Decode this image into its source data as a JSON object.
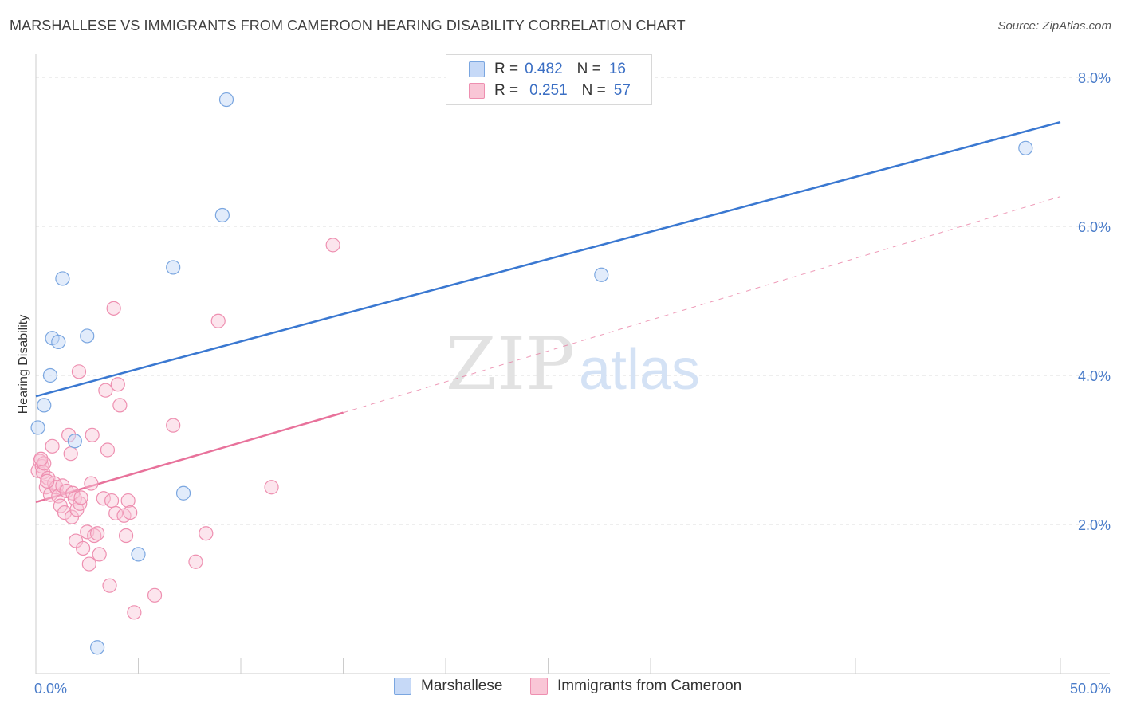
{
  "title": "MARSHALLESE VS IMMIGRANTS FROM CAMEROON HEARING DISABILITY CORRELATION CHART",
  "source": "Source: ZipAtlas.com",
  "watermark": {
    "zip": "ZIP",
    "atlas": "atlas"
  },
  "legend_top": {
    "rows": [
      {
        "r_label": "R =",
        "r_value": "0.482",
        "n_label": "N =",
        "n_value": "16"
      },
      {
        "r_label": "R =",
        "r_value": "0.251",
        "n_label": "N =",
        "n_value": "57"
      }
    ]
  },
  "bottom_legend": {
    "series1": "Marshallese",
    "series2": "Immigrants from Cameroon"
  },
  "colors": {
    "blue_fill": "#c6d9f7",
    "blue_stroke": "#7aa6e0",
    "blue_line": "#3a78d1",
    "pink_fill": "#f9c6d6",
    "pink_stroke": "#ee8fb0",
    "pink_line": "#e8729b",
    "tick_text": "#4a7cc9",
    "grid": "#dcdcdc"
  },
  "chart_data": {
    "type": "scatter",
    "title": "MARSHALLESE VS IMMIGRANTS FROM CAMEROON HEARING DISABILITY CORRELATION CHART",
    "xlabel": "",
    "ylabel": "Hearing Disability",
    "xlim": [
      0,
      50
    ],
    "ylim": [
      0,
      8.2
    ],
    "x_tick_labels": [
      "0.0%",
      "50.0%"
    ],
    "y_ticks": [
      2,
      4,
      6,
      8
    ],
    "y_tick_labels": [
      "2.0%",
      "4.0%",
      "6.0%",
      "8.0%"
    ],
    "grid": true,
    "legend_position": "top-center",
    "series": [
      {
        "name": "Marshallese",
        "color": "#7aa6e0",
        "points": [
          [
            0.1,
            3.3
          ],
          [
            0.4,
            3.6
          ],
          [
            0.7,
            4.0
          ],
          [
            0.8,
            4.5
          ],
          [
            1.1,
            4.45
          ],
          [
            1.3,
            5.3
          ],
          [
            1.9,
            3.12
          ],
          [
            2.5,
            4.53
          ],
          [
            3.0,
            0.35
          ],
          [
            5.0,
            1.6
          ],
          [
            6.7,
            5.45
          ],
          [
            7.2,
            2.42
          ],
          [
            9.1,
            6.15
          ],
          [
            9.3,
            7.7
          ],
          [
            27.6,
            5.35
          ],
          [
            48.3,
            7.05
          ]
        ],
        "trend": {
          "x": [
            0,
            50
          ],
          "y": [
            3.72,
            7.4
          ],
          "style": "solid"
        }
      },
      {
        "name": "Immigrants from Cameroon",
        "color": "#ee8fb0",
        "points": [
          [
            0.1,
            2.72
          ],
          [
            0.2,
            2.85
          ],
          [
            0.3,
            2.78
          ],
          [
            0.35,
            2.7
          ],
          [
            0.4,
            2.82
          ],
          [
            0.5,
            2.5
          ],
          [
            0.6,
            2.62
          ],
          [
            0.7,
            2.4
          ],
          [
            0.8,
            3.05
          ],
          [
            0.9,
            2.55
          ],
          [
            1.0,
            2.5
          ],
          [
            1.1,
            2.38
          ],
          [
            1.2,
            2.25
          ],
          [
            1.3,
            2.52
          ],
          [
            1.4,
            2.16
          ],
          [
            1.5,
            2.45
          ],
          [
            1.6,
            3.2
          ],
          [
            1.7,
            2.95
          ],
          [
            1.75,
            2.1
          ],
          [
            1.8,
            2.42
          ],
          [
            1.9,
            2.35
          ],
          [
            1.95,
            1.78
          ],
          [
            2.0,
            2.2
          ],
          [
            2.1,
            4.05
          ],
          [
            2.15,
            2.28
          ],
          [
            2.2,
            2.36
          ],
          [
            2.3,
            1.68
          ],
          [
            2.5,
            1.9
          ],
          [
            2.6,
            1.47
          ],
          [
            2.7,
            2.55
          ],
          [
            2.75,
            3.2
          ],
          [
            2.85,
            1.85
          ],
          [
            3.0,
            1.88
          ],
          [
            3.1,
            1.6
          ],
          [
            3.3,
            2.35
          ],
          [
            3.4,
            3.8
          ],
          [
            3.5,
            3.0
          ],
          [
            3.6,
            1.18
          ],
          [
            3.7,
            2.32
          ],
          [
            3.8,
            4.9
          ],
          [
            3.9,
            2.15
          ],
          [
            4.0,
            3.88
          ],
          [
            4.1,
            3.6
          ],
          [
            4.3,
            2.12
          ],
          [
            4.4,
            1.85
          ],
          [
            4.5,
            2.32
          ],
          [
            4.6,
            2.16
          ],
          [
            4.8,
            0.82
          ],
          [
            5.8,
            1.05
          ],
          [
            6.7,
            3.33
          ],
          [
            7.8,
            1.5
          ],
          [
            8.3,
            1.88
          ],
          [
            8.9,
            4.73
          ],
          [
            11.5,
            2.5
          ],
          [
            14.5,
            5.75
          ],
          [
            0.25,
            2.88
          ],
          [
            0.55,
            2.58
          ]
        ],
        "trend": {
          "x": [
            0,
            15
          ],
          "y": [
            2.3,
            3.5
          ],
          "style": "solid"
        },
        "trend_extended": {
          "x": [
            15,
            50
          ],
          "y": [
            3.5,
            6.4
          ],
          "style": "dashed"
        }
      }
    ]
  }
}
